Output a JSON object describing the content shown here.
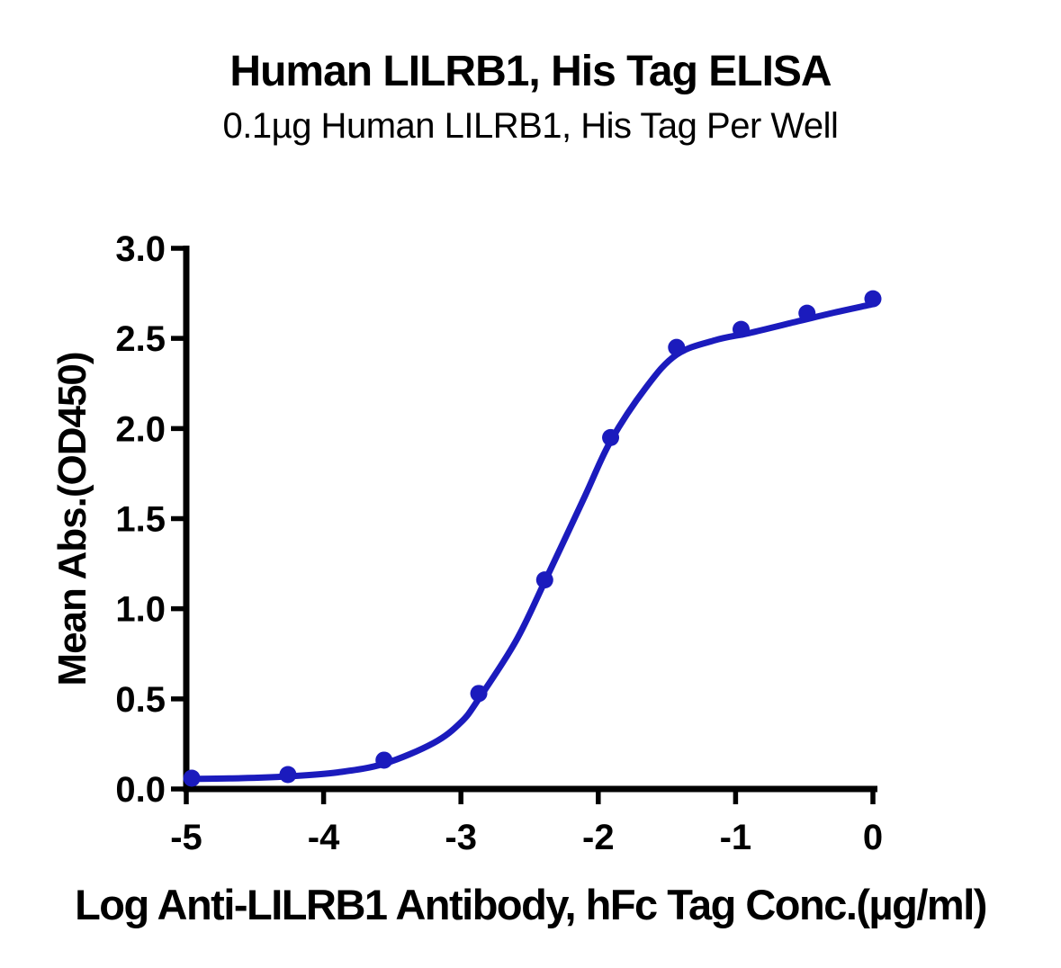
{
  "figure": {
    "title": "Human LILRB1, His Tag ELISA",
    "subtitle": "0.1µg Human LILRB1, His Tag Per Well"
  },
  "chart_data": {
    "type": "line",
    "subtype": "sigmoidal dose-response (4PL fit) with scatter markers",
    "title": "Human LILRB1, His Tag ELISA",
    "subtitle": "0.1µg Human LILRB1, His Tag Per Well",
    "xlabel": "Log Anti-LILRB1 Antibody, hFc Tag Conc.(µg/ml)",
    "ylabel": "Mean Abs.(OD450)",
    "xlim": [
      -5,
      0
    ],
    "ylim": [
      0,
      3
    ],
    "grid": false,
    "legend": "none",
    "x_ticks": [
      {
        "value": -5,
        "label": "-5"
      },
      {
        "value": -4,
        "label": "-4"
      },
      {
        "value": -3,
        "label": "-3"
      },
      {
        "value": -2,
        "label": "-2"
      },
      {
        "value": -1,
        "label": "-1"
      },
      {
        "value": 0,
        "label": "0"
      }
    ],
    "y_ticks": [
      {
        "value": 0.0,
        "label": "0.0"
      },
      {
        "value": 0.5,
        "label": "0.5"
      },
      {
        "value": 1.0,
        "label": "1.0"
      },
      {
        "value": 1.5,
        "label": "1.5"
      },
      {
        "value": 2.0,
        "label": "2.0"
      },
      {
        "value": 2.5,
        "label": "2.5"
      },
      {
        "value": 3.0,
        "label": "3.0"
      }
    ],
    "series": [
      {
        "marker": "filled-circle",
        "color": "#1b1bbd",
        "points": [
          [
            -4.96,
            0.06
          ],
          [
            -4.26,
            0.08
          ],
          [
            -3.56,
            0.16
          ],
          [
            -2.87,
            0.53
          ],
          [
            -2.39,
            1.16
          ],
          [
            -1.91,
            1.95
          ],
          [
            -1.43,
            2.45
          ],
          [
            -0.96,
            2.55
          ],
          [
            -0.48,
            2.64
          ],
          [
            0.0,
            2.72
          ]
        ],
        "fit_curve": [
          [
            -5.0,
            0.055
          ],
          [
            -4.6,
            0.06
          ],
          [
            -4.26,
            0.07
          ],
          [
            -3.9,
            0.092
          ],
          [
            -3.56,
            0.14
          ],
          [
            -3.2,
            0.255
          ],
          [
            -3.0,
            0.37
          ],
          [
            -2.87,
            0.5
          ],
          [
            -2.6,
            0.82
          ],
          [
            -2.39,
            1.15
          ],
          [
            -2.1,
            1.62
          ],
          [
            -1.91,
            1.93
          ],
          [
            -1.65,
            2.23
          ],
          [
            -1.43,
            2.41
          ],
          [
            -1.15,
            2.49
          ],
          [
            -0.9,
            2.53
          ],
          [
            -0.6,
            2.585
          ],
          [
            -0.3,
            2.64
          ],
          [
            0.0,
            2.69
          ]
        ]
      }
    ]
  },
  "colors": {
    "series_blue": "#1b1bbd",
    "axis": "#000000",
    "text": "#000000",
    "background": "#ffffff"
  }
}
